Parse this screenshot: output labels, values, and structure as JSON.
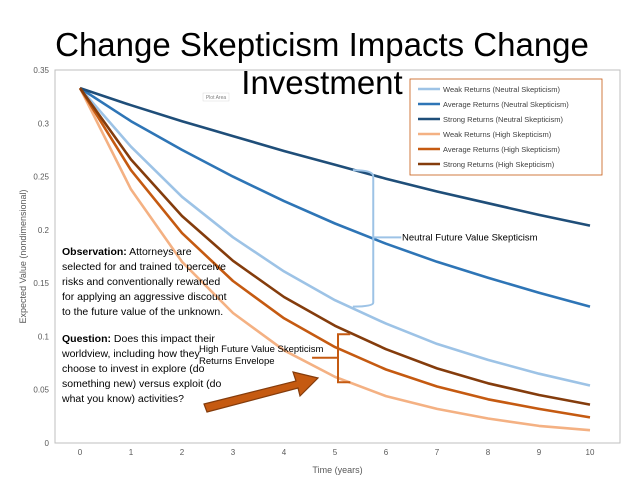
{
  "title": "Change Skepticism Impacts Change Investment",
  "chart_data": {
    "type": "line",
    "xlabel": "Time (years)",
    "ylabel": "Expected Value (nondimensional)",
    "x": [
      0,
      1,
      2,
      3,
      4,
      5,
      6,
      7,
      8,
      9,
      10
    ],
    "xlim": [
      0,
      10
    ],
    "ylim": [
      0,
      0.35
    ],
    "yticks": [
      "0",
      "0.05",
      "0.1",
      "0.15",
      "0.2",
      "0.25",
      "0.3",
      "0.35"
    ],
    "xticks": [
      "0",
      "1",
      "2",
      "3",
      "4",
      "5",
      "6",
      "7",
      "8",
      "9",
      "10"
    ],
    "grid": false,
    "legend_position": "top-right",
    "series": [
      {
        "name": "Weak Returns (Neutral Skepticism)",
        "color": "#9dc3e6",
        "values": [
          0.333,
          0.278,
          0.231,
          0.193,
          0.161,
          0.134,
          0.112,
          0.093,
          0.078,
          0.065,
          0.054
        ]
      },
      {
        "name": "Average Returns (Neutral Skepticism)",
        "color": "#2e75b6",
        "values": [
          0.333,
          0.302,
          0.275,
          0.25,
          0.227,
          0.206,
          0.187,
          0.17,
          0.155,
          0.141,
          0.128
        ]
      },
      {
        "name": "Strong Returns (Neutral Skepticism)",
        "color": "#1f4e79",
        "values": [
          0.333,
          0.317,
          0.302,
          0.288,
          0.274,
          0.261,
          0.248,
          0.236,
          0.225,
          0.214,
          0.204
        ]
      },
      {
        "name": "Weak Returns (High Skepticism)",
        "color": "#f4b183",
        "values": [
          0.333,
          0.238,
          0.17,
          0.122,
          0.087,
          0.062,
          0.044,
          0.032,
          0.023,
          0.016,
          0.012
        ]
      },
      {
        "name": "Average Returns (High Skepticism)",
        "color": "#c55a11",
        "values": [
          0.333,
          0.256,
          0.197,
          0.152,
          0.117,
          0.09,
          0.069,
          0.053,
          0.041,
          0.032,
          0.024
        ]
      },
      {
        "name": "Strong Returns (High Skepticism)",
        "color": "#843c0c",
        "values": [
          0.333,
          0.266,
          0.213,
          0.171,
          0.137,
          0.11,
          0.088,
          0.07,
          0.056,
          0.045,
          0.036
        ]
      }
    ],
    "annotations": {
      "plot_area_tag": "Plot Area",
      "neutral_label": "Neutral Future Value Skepticism",
      "high_label_line1": "High Future Value Skepticism",
      "high_label_line2": "Returns Envelope"
    }
  },
  "observation": {
    "label": "Observation:",
    "text": "Attorneys are selected for and trained to perceive risks and conventionally rewarded for applying an aggressive discount to the future value of the unknown."
  },
  "question": {
    "label": "Question:",
    "text": "Does this impact their worldview, including how they choose to invest in explore (do something new) versus exploit (do what you know) activities?"
  }
}
